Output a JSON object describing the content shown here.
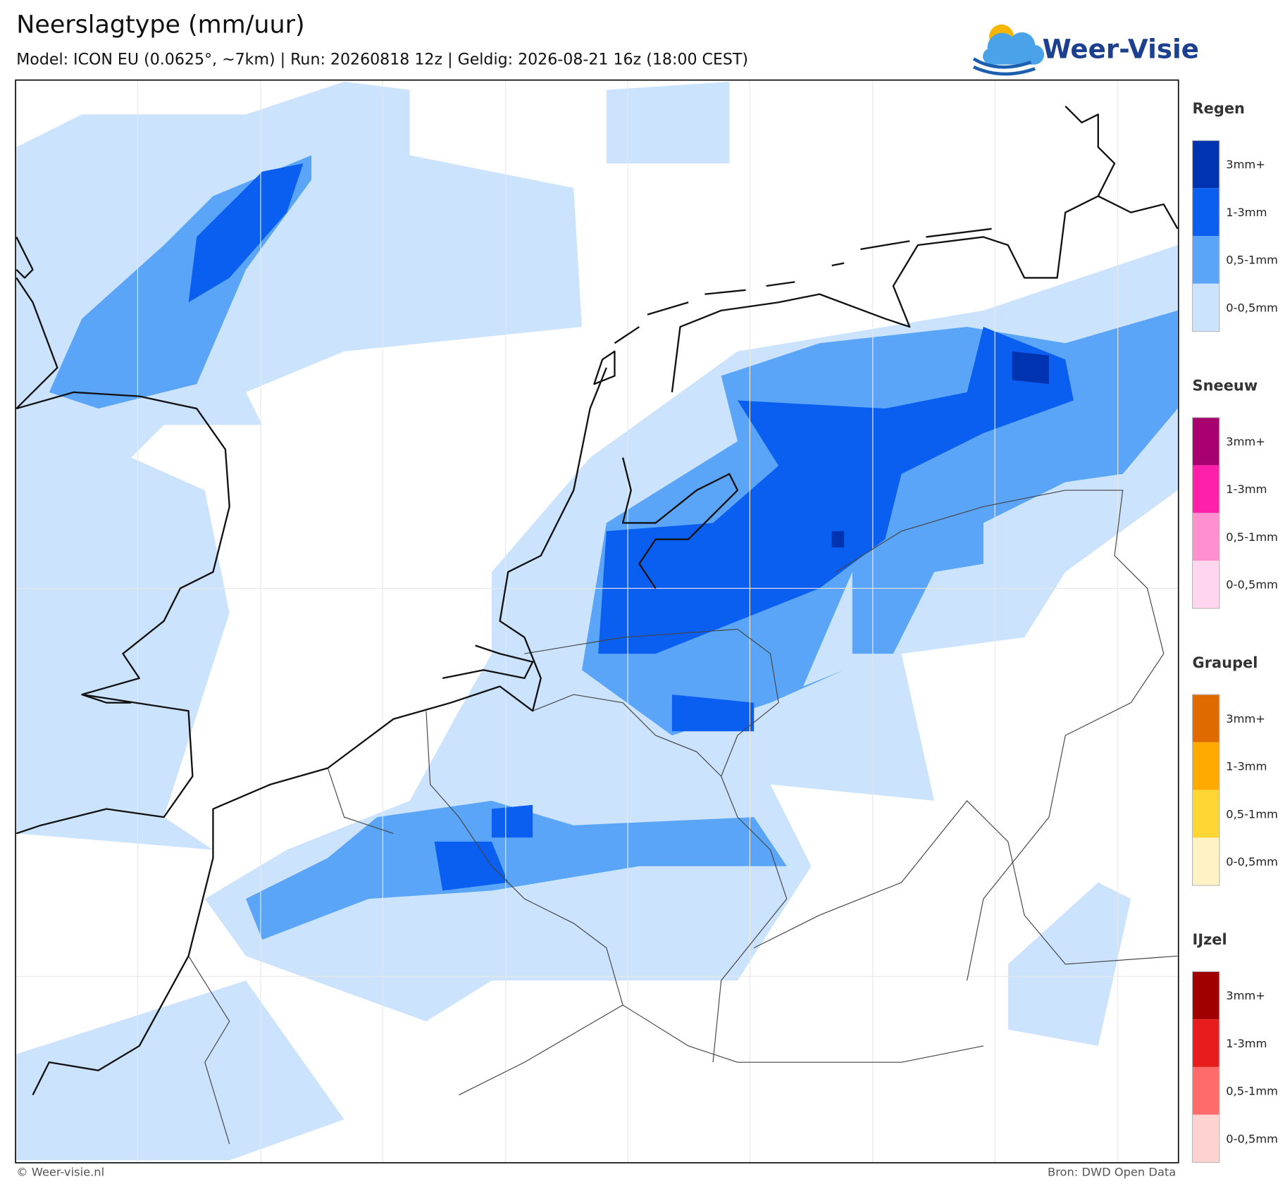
{
  "header": {
    "title": "Neerslagtype (mm/uur)",
    "subtitle": "Model: ICON EU (0.0625°, ~7km)  |  Run: 20260818 12z  |  Geldig: 2026-08-21 16z (18:00 CEST)"
  },
  "logo": {
    "text": "Weer-Visie"
  },
  "legend": {
    "groups": [
      {
        "title": "Regen",
        "items": [
          {
            "label": "3mm+",
            "color": "#0033b0"
          },
          {
            "label": "1-3mm",
            "color": "#0a5ff0"
          },
          {
            "label": "0,5-1mm",
            "color": "#5aa5f7"
          },
          {
            "label": "0-0,5mm",
            "color": "#cce3fd"
          }
        ]
      },
      {
        "title": "Sneeuw",
        "items": [
          {
            "label": "3mm+",
            "color": "#a8006e"
          },
          {
            "label": "1-3mm",
            "color": "#ff1fa8"
          },
          {
            "label": "0,5-1mm",
            "color": "#ff8fcf"
          },
          {
            "label": "0-0,5mm",
            "color": "#ffd6ee"
          }
        ]
      },
      {
        "title": "Graupel",
        "items": [
          {
            "label": "3mm+",
            "color": "#e06a00"
          },
          {
            "label": "1-3mm",
            "color": "#ffaa00"
          },
          {
            "label": "0,5-1mm",
            "color": "#ffd633"
          },
          {
            "label": "0-0,5mm",
            "color": "#fff2c4"
          }
        ]
      },
      {
        "title": "IJzel",
        "items": [
          {
            "label": "3mm+",
            "color": "#a00000"
          },
          {
            "label": "1-3mm",
            "color": "#e81c1c"
          },
          {
            "label": "0,5-1mm",
            "color": "#ff6b6b"
          },
          {
            "label": "0-0,5mm",
            "color": "#ffd2d2"
          }
        ]
      }
    ]
  },
  "footer": {
    "left": "© Weer-visie.nl",
    "right": "Bron: DWD Open Data"
  }
}
